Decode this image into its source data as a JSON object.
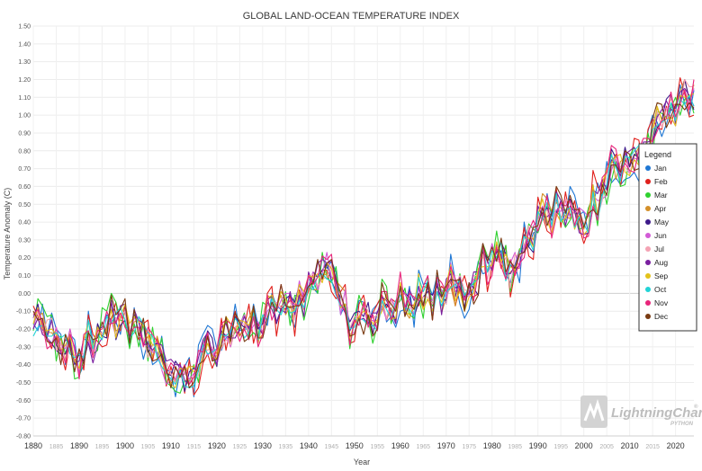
{
  "chart_data": {
    "type": "line",
    "title": "GLOBAL LAND-OCEAN TEMPERATURE INDEX",
    "xlabel": "Year",
    "ylabel": "Temperature Anomaly (C)",
    "xlim": [
      1880,
      2024
    ],
    "ylim": [
      -0.8,
      1.5
    ],
    "grid": true,
    "legend": {
      "title": "Legend",
      "placement": "right"
    },
    "x_ticks": [
      "1880",
      "1885",
      "1890",
      "1895",
      "1900",
      "1905",
      "1910",
      "1915",
      "1920",
      "1925",
      "1930",
      "1935",
      "1940",
      "1945",
      "1950",
      "1955",
      "1960",
      "1965",
      "1970",
      "1975",
      "1980",
      "1985",
      "1990",
      "1995",
      "2000",
      "2005",
      "2010",
      "2015",
      "2020"
    ],
    "y_ticks": [
      "-0.80",
      "-0.70",
      "-0.60",
      "-0.50",
      "-0.40",
      "-0.30",
      "-0.20",
      "-0.10",
      "0.00",
      "0.10",
      "0.20",
      "0.30",
      "0.40",
      "0.50",
      "0.60",
      "0.70",
      "0.80",
      "0.90",
      "1.00",
      "1.10",
      "1.20",
      "1.30",
      "1.40",
      "1.50"
    ],
    "baseline": {
      "years": [
        1880,
        1890,
        1900,
        1905,
        1910,
        1917,
        1920,
        1930,
        1936,
        1940,
        1944,
        1950,
        1955,
        1960,
        1965,
        1970,
        1975,
        1980,
        1985,
        1990,
        1995,
        2000,
        2005,
        2010,
        2015,
        2020,
        2024
      ],
      "values": [
        -0.17,
        -0.33,
        -0.1,
        -0.3,
        -0.44,
        -0.41,
        -0.27,
        -0.16,
        -0.11,
        0.07,
        0.15,
        -0.17,
        -0.1,
        -0.03,
        -0.05,
        0.03,
        0.0,
        0.26,
        0.12,
        0.45,
        0.44,
        0.39,
        0.68,
        0.72,
        0.9,
        1.01,
        1.17
      ]
    },
    "series": [
      {
        "name": "Jan",
        "color": "#1f77d4",
        "values": []
      },
      {
        "name": "Feb",
        "color": "#e0201c",
        "values": []
      },
      {
        "name": "Mar",
        "color": "#2fd12f",
        "values": []
      },
      {
        "name": "Apr",
        "color": "#d4902a",
        "values": []
      },
      {
        "name": "May",
        "color": "#3d1a8a",
        "values": []
      },
      {
        "name": "Jun",
        "color": "#d25bd6",
        "values": []
      },
      {
        "name": "Jul",
        "color": "#f4a3b4",
        "values": []
      },
      {
        "name": "Aug",
        "color": "#7a1fa0",
        "values": []
      },
      {
        "name": "Sep",
        "color": "#e3c21a",
        "values": []
      },
      {
        "name": "Oct",
        "color": "#22d3d6",
        "values": []
      },
      {
        "name": "Nov",
        "color": "#e8247a",
        "values": []
      },
      {
        "name": "Dec",
        "color": "#7a3b12",
        "values": []
      }
    ]
  },
  "watermark": {
    "brand": "LightningChart",
    "sub": "PYTHON",
    "mark": "®"
  }
}
